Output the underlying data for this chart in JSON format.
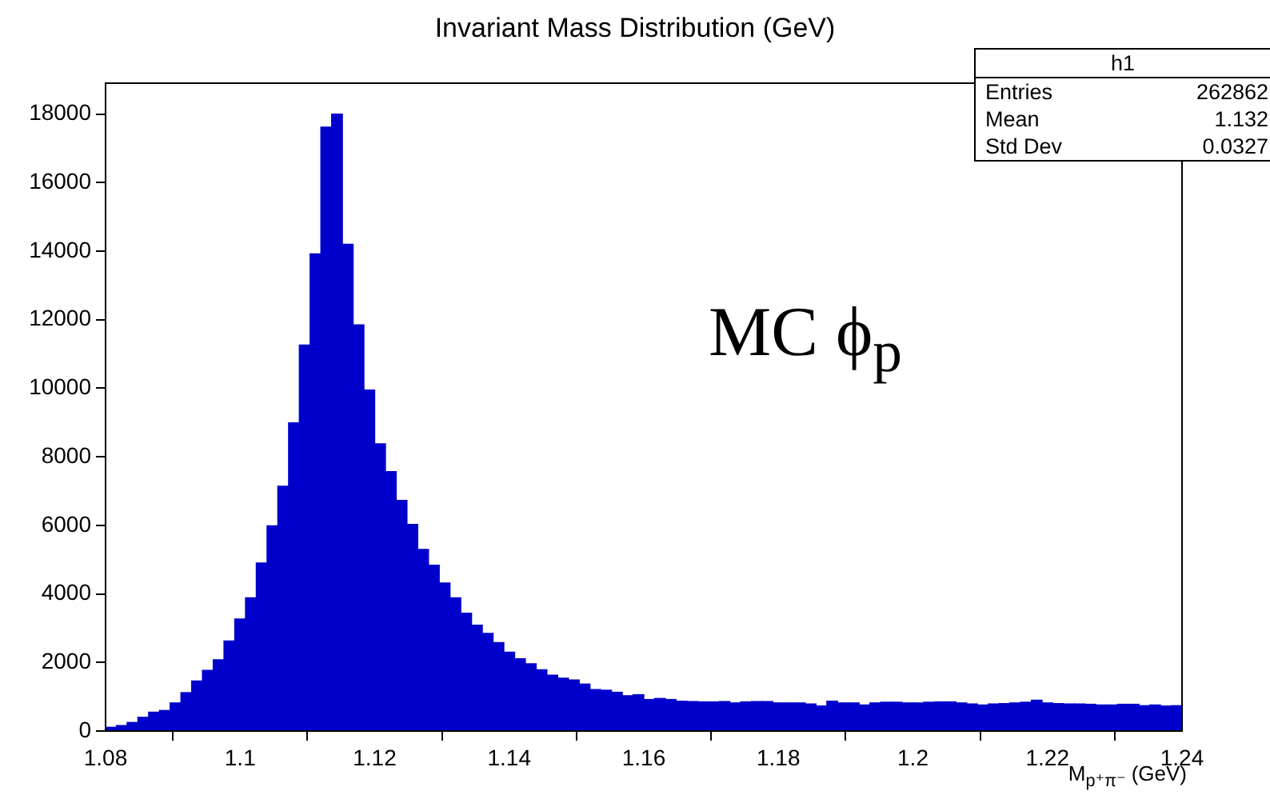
{
  "chart_data": {
    "type": "histogram",
    "title": "Invariant Mass Distribution (GeV)",
    "xlabel": "M$_{p⁺π⁻}$ (GeV)",
    "bins": [
      1.08,
      1.0816,
      1.0832,
      1.0848,
      1.0864,
      1.088,
      1.0896,
      1.0912,
      1.0928,
      1.0944,
      1.096,
      1.0976,
      1.0992,
      1.1008,
      1.1024,
      1.104,
      1.1056,
      1.1072,
      1.1088,
      1.1104,
      1.112,
      1.1136,
      1.1152,
      1.1168,
      1.1184,
      1.12,
      1.1216,
      1.1232,
      1.1248,
      1.1264,
      1.128,
      1.1296,
      1.1312,
      1.1328,
      1.1344,
      1.136,
      1.1376,
      1.1392,
      1.1408,
      1.1424,
      1.144,
      1.1456,
      1.1472,
      1.1488,
      1.1504,
      1.152,
      1.1536,
      1.1552,
      1.1568,
      1.1584,
      1.16,
      1.1616,
      1.1632,
      1.1648,
      1.1664,
      1.168,
      1.1696,
      1.1712,
      1.1728,
      1.1744,
      1.176,
      1.1776,
      1.1792,
      1.1808,
      1.1824,
      1.184,
      1.1856,
      1.1872,
      1.1888,
      1.1904,
      1.192,
      1.1936,
      1.1952,
      1.1968,
      1.1984,
      1.2,
      1.2016,
      1.2032,
      1.2048,
      1.2064,
      1.208,
      1.2096,
      1.2112,
      1.2128,
      1.2144,
      1.216,
      1.2176,
      1.2192,
      1.2208,
      1.2224,
      1.224,
      1.2256,
      1.2272,
      1.2288,
      1.2304,
      1.232,
      1.2336,
      1.2352,
      1.2368,
      1.2384,
      1.24
    ],
    "values": [
      110,
      160,
      250,
      400,
      550,
      600,
      820,
      1120,
      1460,
      1770,
      2080,
      2630,
      3270,
      3890,
      4900,
      5990,
      7140,
      8990,
      11260,
      13920,
      17620,
      18000,
      14200,
      11850,
      9950,
      8380,
      7570,
      6730,
      6030,
      5300,
      4840,
      4320,
      3890,
      3440,
      3090,
      2850,
      2580,
      2300,
      2110,
      1960,
      1790,
      1630,
      1540,
      1490,
      1370,
      1210,
      1190,
      1130,
      1030,
      1060,
      920,
      950,
      920,
      870,
      860,
      850,
      850,
      860,
      820,
      850,
      860,
      860,
      820,
      820,
      820,
      790,
      730,
      870,
      820,
      820,
      760,
      820,
      840,
      840,
      820,
      820,
      840,
      850,
      850,
      820,
      790,
      760,
      790,
      800,
      820,
      840,
      900,
      820,
      800,
      790,
      790,
      780,
      760,
      760,
      780,
      780,
      740,
      760,
      730,
      740
    ],
    "color": "#0000cc",
    "xlim": [
      1.08,
      1.24
    ],
    "xticks": [
      1.08,
      1.1,
      1.12,
      1.14,
      1.16,
      1.18,
      1.2,
      1.22,
      1.24
    ],
    "ylim": [
      0,
      18900
    ],
    "yticks": [
      0,
      2000,
      4000,
      6000,
      8000,
      10000,
      12000,
      14000,
      16000,
      18000
    ],
    "grid": false,
    "legend": false,
    "annotations": [
      "h1",
      "Entries",
      "262862",
      "Mean",
      "1.132",
      "Std Dev",
      "0.0327",
      "MC ϕ$_{p}$"
    ]
  }
}
